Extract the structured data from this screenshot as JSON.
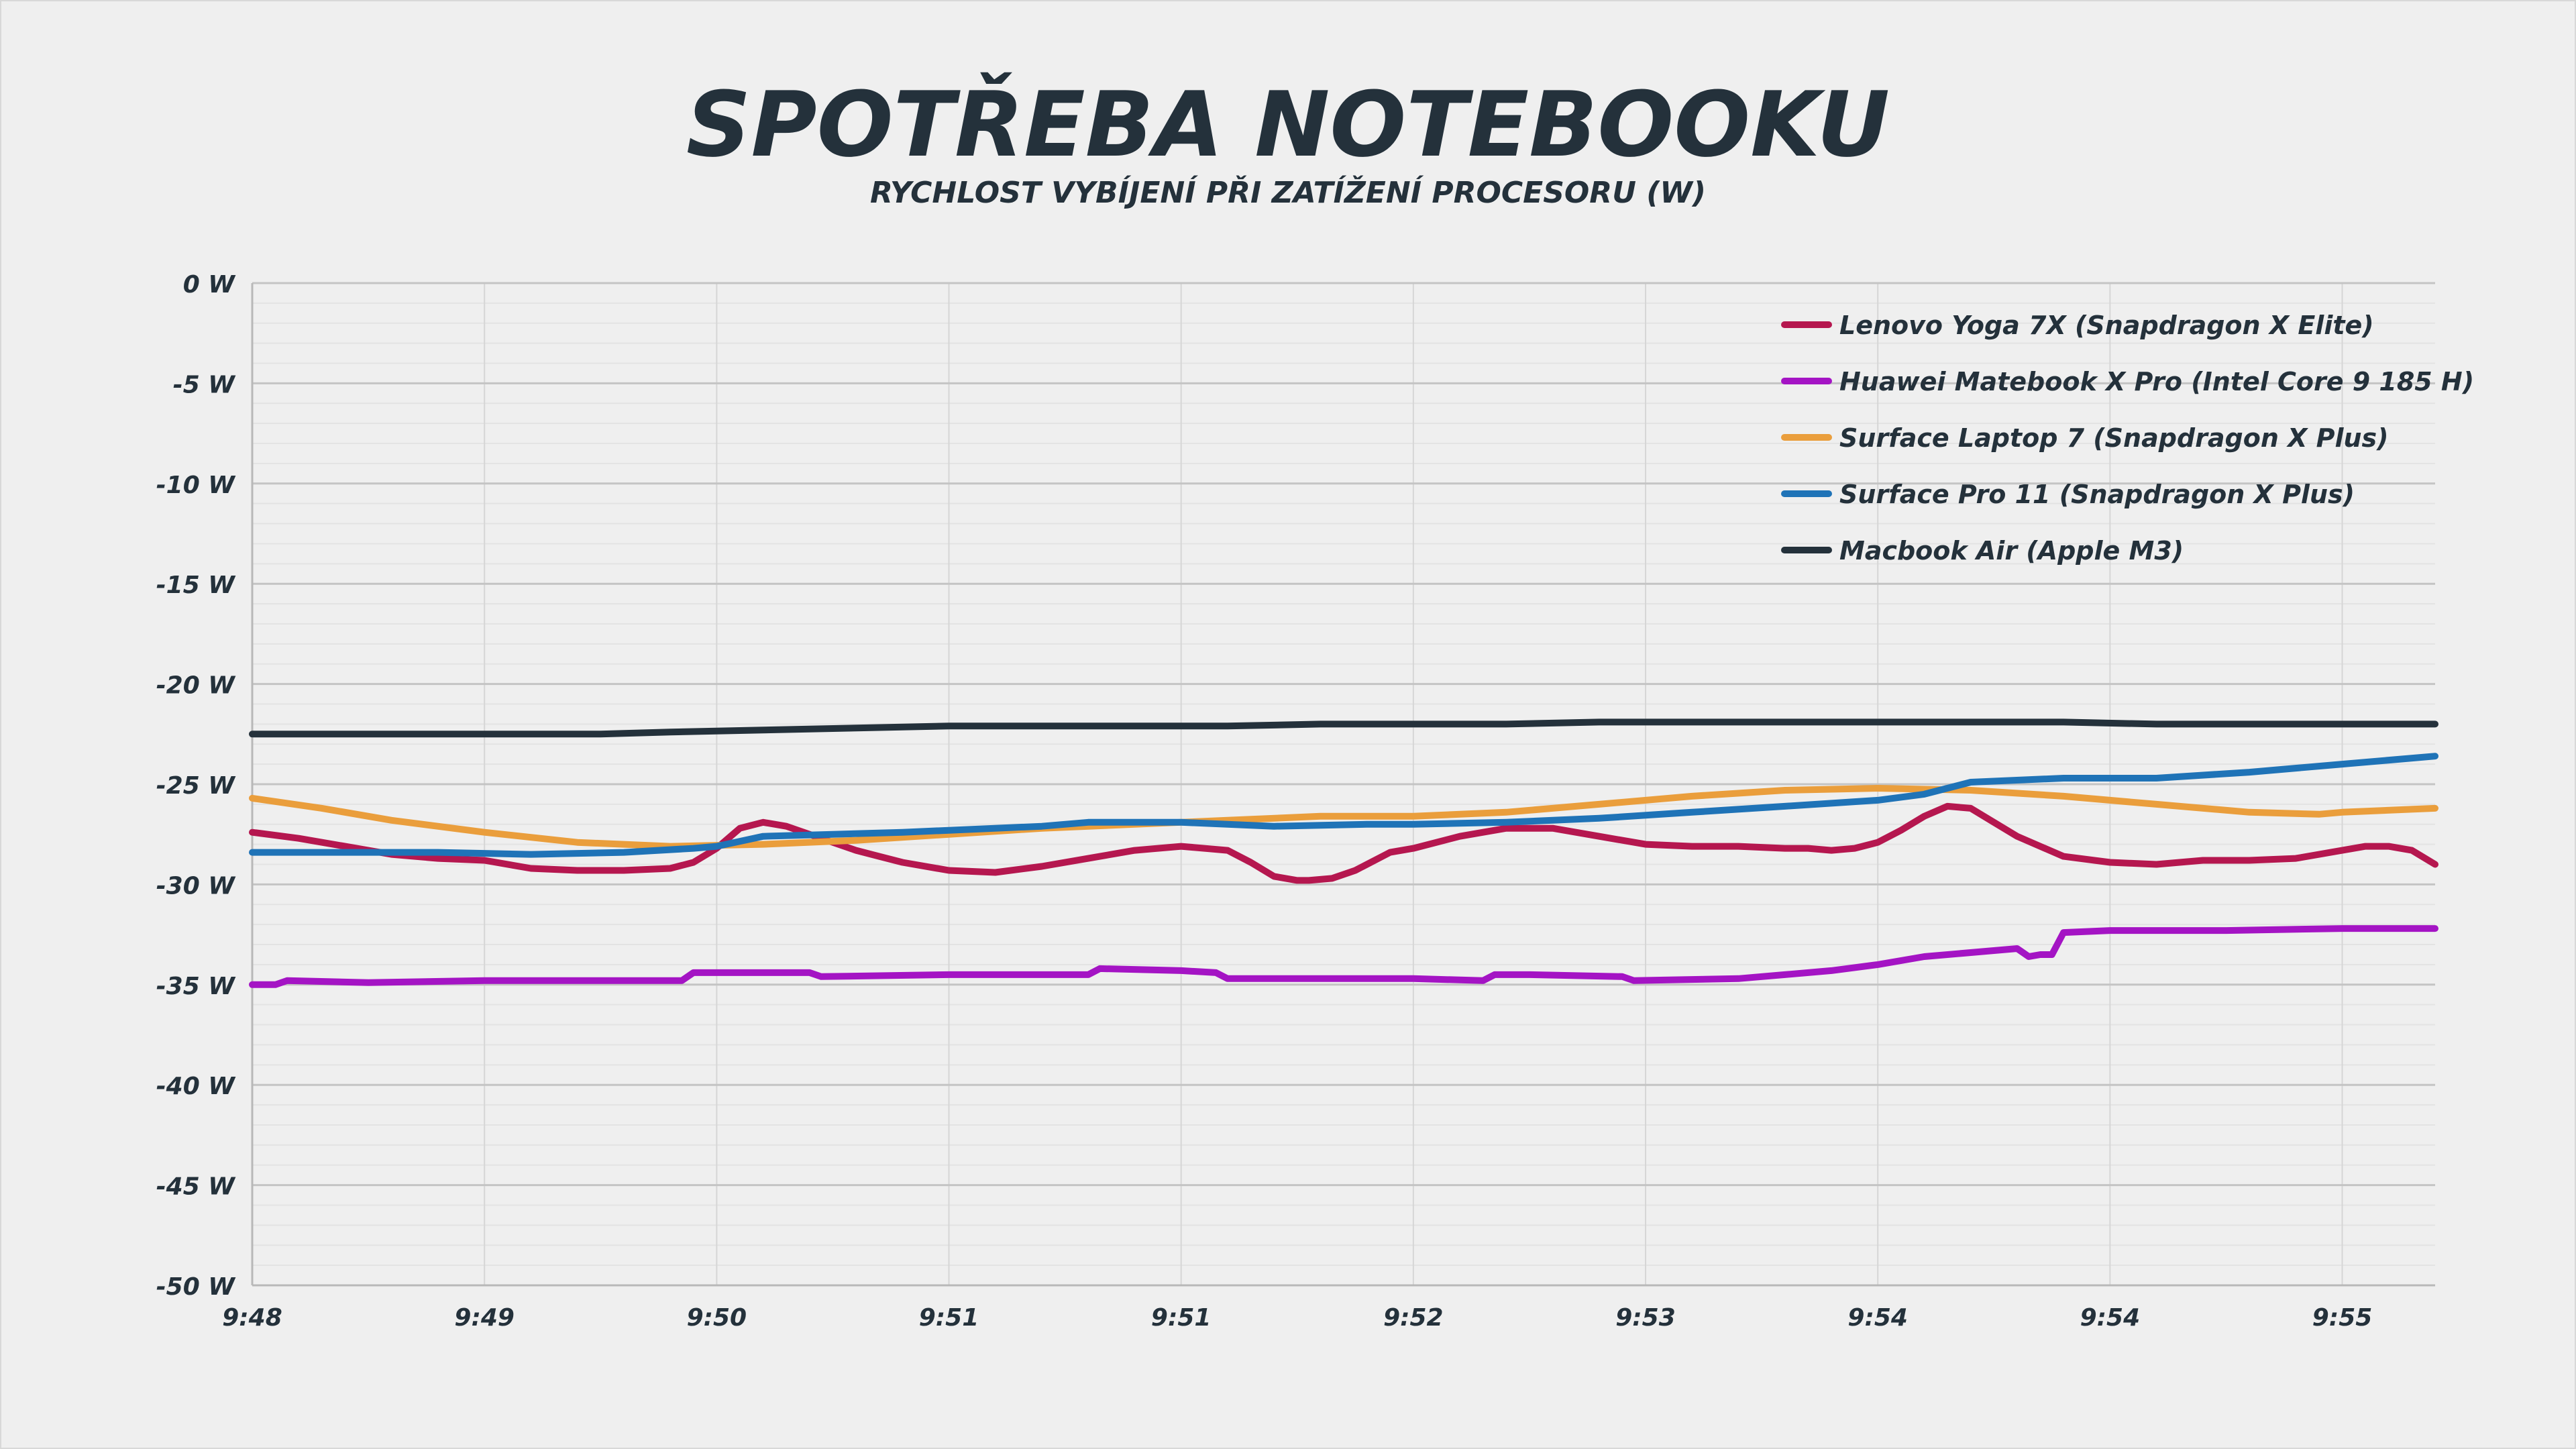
{
  "chart_data": {
    "type": "line",
    "title": "SPOTŘEBA NOTEBOOKU",
    "subtitle": "RYCHLOST VYBÍJENÍ PŘI ZATÍŽENÍ PROCESORU (W)",
    "xlabel": "",
    "ylabel": "",
    "ylim": [
      -50,
      0
    ],
    "xlim": [
      0,
      9.4
    ],
    "y_ticks": [
      0,
      -5,
      -10,
      -15,
      -20,
      -25,
      -30,
      -35,
      -40,
      -45,
      -50
    ],
    "y_tick_labels": [
      "0 W",
      "-5 W",
      "-10 W",
      "-15 W",
      "-20 W",
      "-25 W",
      "-30 W",
      "-35 W",
      "-40 W",
      "-45 W",
      "-50 W"
    ],
    "x_ticks": [
      0,
      1,
      2,
      3,
      4,
      5,
      6,
      7,
      8,
      9
    ],
    "x_tick_labels": [
      "9:48",
      "9:49",
      "9:50",
      "9:51",
      "9:51",
      "9:52",
      "9:53",
      "9:54",
      "9:54",
      "9:55"
    ],
    "grid": true,
    "legend_position": "top-right",
    "series": [
      {
        "name": "Lenovo Yoga 7X (Snapdragon X Elite)",
        "color": "#b5174f",
        "x": [
          0,
          0.2,
          0.4,
          0.6,
          0.8,
          1.0,
          1.2,
          1.4,
          1.6,
          1.8,
          1.9,
          2.0,
          2.1,
          2.2,
          2.3,
          2.4,
          2.5,
          2.6,
          2.7,
          2.8,
          3.0,
          3.2,
          3.4,
          3.6,
          3.8,
          4.0,
          4.2,
          4.3,
          4.4,
          4.5,
          4.55,
          4.65,
          4.75,
          4.9,
          5.0,
          5.2,
          5.4,
          5.6,
          5.8,
          6.0,
          6.2,
          6.4,
          6.6,
          6.7,
          6.8,
          6.9,
          7.0,
          7.1,
          7.2,
          7.3,
          7.4,
          7.5,
          7.6,
          7.8,
          8.0,
          8.2,
          8.4,
          8.6,
          8.8,
          9.0,
          9.1,
          9.2,
          9.3,
          9.4
        ],
        "y": [
          -27.4,
          -27.7,
          -28.1,
          -28.5,
          -28.7,
          -28.8,
          -29.2,
          -29.3,
          -29.3,
          -29.2,
          -28.9,
          -28.2,
          -27.2,
          -26.9,
          -27.1,
          -27.5,
          -27.9,
          -28.3,
          -28.6,
          -28.9,
          -29.3,
          -29.4,
          -29.1,
          -28.7,
          -28.3,
          -28.1,
          -28.3,
          -28.9,
          -29.6,
          -29.8,
          -29.8,
          -29.7,
          -29.3,
          -28.4,
          -28.2,
          -27.6,
          -27.2,
          -27.2,
          -27.6,
          -28.0,
          -28.1,
          -28.1,
          -28.2,
          -28.2,
          -28.3,
          -28.2,
          -27.9,
          -27.3,
          -26.6,
          -26.1,
          -26.2,
          -26.9,
          -27.6,
          -28.6,
          -28.9,
          -29.0,
          -28.8,
          -28.8,
          -28.7,
          -28.3,
          -28.1,
          -28.1,
          -28.3,
          -29.0
        ]
      },
      {
        "name": "Huawei Matebook X Pro (Intel Core 9 185 H)",
        "color": "#a414c4",
        "x": [
          0,
          0.1,
          0.15,
          0.5,
          1.0,
          1.5,
          1.85,
          1.9,
          2.0,
          2.4,
          2.45,
          3.0,
          3.5,
          3.6,
          3.65,
          4.0,
          4.15,
          4.2,
          4.5,
          5.0,
          5.3,
          5.35,
          5.5,
          5.9,
          5.95,
          6.4,
          6.6,
          6.8,
          7.0,
          7.2,
          7.6,
          7.65,
          7.7,
          7.75,
          7.8,
          8.0,
          8.5,
          9.0,
          9.4
        ],
        "y": [
          -35.0,
          -35.0,
          -34.8,
          -34.9,
          -34.8,
          -34.8,
          -34.8,
          -34.4,
          -34.4,
          -34.4,
          -34.6,
          -34.5,
          -34.5,
          -34.5,
          -34.2,
          -34.3,
          -34.4,
          -34.7,
          -34.7,
          -34.7,
          -34.8,
          -34.5,
          -34.5,
          -34.6,
          -34.8,
          -34.7,
          -34.5,
          -34.3,
          -34.0,
          -33.6,
          -33.2,
          -33.6,
          -33.5,
          -33.5,
          -32.4,
          -32.3,
          -32.3,
          -32.2,
          -32.2
        ]
      },
      {
        "name": "Surface Laptop 7 (Snapdragon X Plus)",
        "color": "#ea9e3c",
        "x": [
          0,
          0.3,
          0.6,
          1.0,
          1.4,
          1.8,
          2.2,
          2.6,
          3.0,
          3.4,
          3.8,
          4.2,
          4.6,
          5.0,
          5.4,
          5.8,
          6.2,
          6.6,
          7.0,
          7.4,
          7.8,
          8.2,
          8.6,
          8.9,
          9.0,
          9.4
        ],
        "y": [
          -25.7,
          -26.2,
          -26.8,
          -27.4,
          -27.9,
          -28.1,
          -28.0,
          -27.8,
          -27.5,
          -27.2,
          -27.0,
          -26.8,
          -26.6,
          -26.6,
          -26.4,
          -26.0,
          -25.6,
          -25.3,
          -25.2,
          -25.3,
          -25.6,
          -26.0,
          -26.4,
          -26.5,
          -26.4,
          -26.2
        ]
      },
      {
        "name": "Surface Pro 11 (Snapdragon X Plus)",
        "color": "#1f73b7",
        "x": [
          0,
          0.4,
          0.8,
          1.2,
          1.6,
          1.9,
          2.0,
          2.2,
          2.5,
          2.8,
          3.0,
          3.4,
          3.6,
          3.8,
          4.0,
          4.4,
          4.8,
          5.0,
          5.4,
          5.8,
          6.2,
          6.6,
          7.0,
          7.2,
          7.4,
          7.8,
          8.2,
          8.6,
          9.0,
          9.4
        ],
        "y": [
          -28.4,
          -28.4,
          -28.4,
          -28.5,
          -28.4,
          -28.2,
          -28.1,
          -27.6,
          -27.5,
          -27.4,
          -27.3,
          -27.1,
          -26.9,
          -26.9,
          -26.9,
          -27.1,
          -27.0,
          -27.0,
          -26.9,
          -26.7,
          -26.4,
          -26.1,
          -25.8,
          -25.5,
          -24.9,
          -24.7,
          -24.7,
          -24.4,
          -24.0,
          -23.6
        ]
      },
      {
        "name": "Macbook Air (Apple M3)",
        "color": "#24313b",
        "x": [
          0,
          0.5,
          1.0,
          1.5,
          1.8,
          2.2,
          2.6,
          3.0,
          3.4,
          3.8,
          4.2,
          4.6,
          5.0,
          5.4,
          5.8,
          6.2,
          6.6,
          7.0,
          7.4,
          7.8,
          8.2,
          8.6,
          9.0,
          9.4
        ],
        "y": [
          -22.5,
          -22.5,
          -22.5,
          -22.5,
          -22.4,
          -22.3,
          -22.2,
          -22.1,
          -22.1,
          -22.1,
          -22.1,
          -22.0,
          -22.0,
          -22.0,
          -21.9,
          -21.9,
          -21.9,
          -21.9,
          -21.9,
          -21.9,
          -22.0,
          -22.0,
          -22.0,
          -22.0
        ]
      }
    ]
  }
}
